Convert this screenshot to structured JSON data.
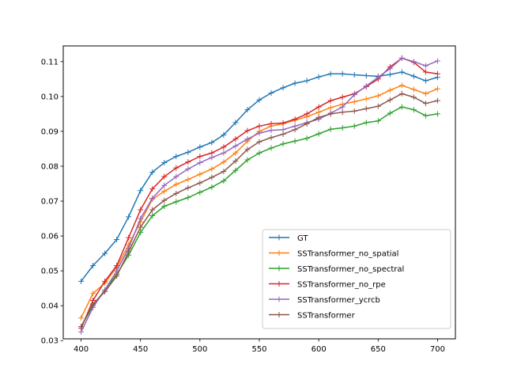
{
  "chart_data": {
    "type": "line",
    "title": "",
    "xlabel": "",
    "ylabel": "",
    "xlim": [
      385,
      715
    ],
    "ylim": [
      0.0305,
      0.1145
    ],
    "xticks": [
      400,
      450,
      500,
      550,
      600,
      650,
      700
    ],
    "yticks": [
      0.03,
      0.04,
      0.05,
      0.06,
      0.07,
      0.08,
      0.09,
      0.1,
      0.11
    ],
    "ytick_labels": [
      "0.03",
      "0.04",
      "0.05",
      "0.06",
      "0.07",
      "0.08",
      "0.09",
      "0.10",
      "0.11"
    ],
    "grid": false,
    "legend_position": "lower-right",
    "marker": "+",
    "x": [
      400,
      410,
      420,
      430,
      440,
      450,
      460,
      470,
      480,
      490,
      500,
      510,
      520,
      530,
      540,
      550,
      560,
      570,
      580,
      590,
      600,
      610,
      620,
      630,
      640,
      650,
      660,
      670,
      680,
      690,
      700
    ],
    "series": [
      {
        "name": "GT",
        "color": "#1f77b4",
        "values": [
          0.047,
          0.0515,
          0.055,
          0.059,
          0.0655,
          0.073,
          0.0783,
          0.081,
          0.0828,
          0.084,
          0.0855,
          0.0868,
          0.089,
          0.0925,
          0.0962,
          0.099,
          0.101,
          0.1025,
          0.1038,
          0.1045,
          0.1056,
          0.1065,
          0.1065,
          0.1062,
          0.106,
          0.1058,
          0.1063,
          0.107,
          0.1058,
          0.1045,
          0.1055
        ]
      },
      {
        "name": "SSTransformer_no_spatial",
        "color": "#ff7f0e",
        "values": [
          0.0365,
          0.0435,
          0.0465,
          0.051,
          0.0575,
          0.064,
          0.0705,
          0.0728,
          0.0748,
          0.0762,
          0.0777,
          0.0792,
          0.0812,
          0.0838,
          0.0872,
          0.09,
          0.0915,
          0.0922,
          0.0932,
          0.0942,
          0.0955,
          0.0968,
          0.0978,
          0.0985,
          0.0993,
          0.1002,
          0.1018,
          0.1032,
          0.102,
          0.1008,
          0.1022
        ]
      },
      {
        "name": "SSTransformer_no_spectral",
        "color": "#2ca02c",
        "values": [
          0.034,
          0.04,
          0.0445,
          0.049,
          0.0545,
          0.061,
          0.0658,
          0.0685,
          0.0698,
          0.071,
          0.0725,
          0.074,
          0.0758,
          0.0788,
          0.0818,
          0.0838,
          0.0852,
          0.0864,
          0.0872,
          0.088,
          0.0893,
          0.0906,
          0.091,
          0.0915,
          0.0925,
          0.093,
          0.0952,
          0.097,
          0.0962,
          0.0945,
          0.095
        ]
      },
      {
        "name": "SSTransformer_no_rpe",
        "color": "#d62728",
        "values": [
          0.0335,
          0.0415,
          0.047,
          0.0515,
          0.0595,
          0.0675,
          0.0735,
          0.077,
          0.0795,
          0.0812,
          0.0828,
          0.0838,
          0.0855,
          0.0878,
          0.0902,
          0.0915,
          0.0922,
          0.0924,
          0.0935,
          0.095,
          0.097,
          0.0988,
          0.0998,
          0.1008,
          0.1028,
          0.105,
          0.1085,
          0.111,
          0.1098,
          0.107,
          0.1065
        ]
      },
      {
        "name": "SSTransformer_ycrcb",
        "color": "#9467bd",
        "values": [
          0.0325,
          0.0395,
          0.0445,
          0.05,
          0.0565,
          0.065,
          0.0708,
          0.0745,
          0.077,
          0.0792,
          0.081,
          0.0825,
          0.0838,
          0.0858,
          0.0878,
          0.0895,
          0.0903,
          0.0905,
          0.0915,
          0.0925,
          0.0935,
          0.0952,
          0.097,
          0.1005,
          0.103,
          0.1055,
          0.108,
          0.111,
          0.11,
          0.1088,
          0.1102
        ]
      },
      {
        "name": "SSTransformer",
        "color": "#8c564b",
        "values": [
          0.034,
          0.0405,
          0.044,
          0.0485,
          0.0555,
          0.0625,
          0.0675,
          0.0702,
          0.0722,
          0.0738,
          0.0752,
          0.0768,
          0.0785,
          0.0815,
          0.0848,
          0.087,
          0.0882,
          0.0892,
          0.0905,
          0.0922,
          0.094,
          0.095,
          0.0955,
          0.0958,
          0.0965,
          0.0972,
          0.099,
          0.1008,
          0.0998,
          0.098,
          0.0988
        ]
      }
    ]
  }
}
